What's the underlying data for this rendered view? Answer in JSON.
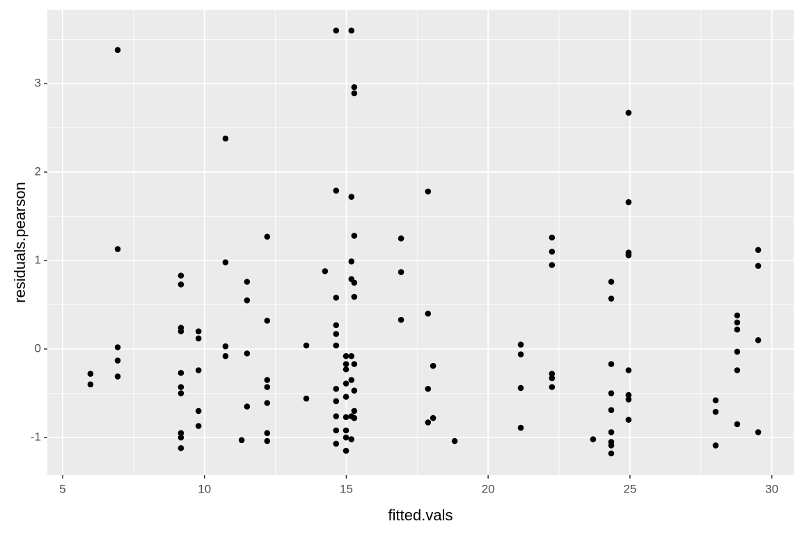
{
  "chart_data": {
    "type": "scatter",
    "x_label": "fitted.vals",
    "y_label": "residuals.pearson",
    "color": "#000000",
    "xlim": [
      4.46,
      30.77
    ],
    "ylim": [
      -1.425,
      3.835
    ],
    "xticks": [
      5,
      10,
      15,
      20,
      25,
      30
    ],
    "yticks": [
      -1,
      0,
      1,
      2,
      3
    ],
    "xminor_ticks": [
      7.5,
      12.5,
      17.5,
      22.5,
      27.5
    ],
    "yminor_ticks": [
      -0.5,
      0.5,
      1.5,
      2.5,
      3.5
    ],
    "grid": true,
    "x": [
      5.98,
      5.98,
      6.94,
      6.94,
      6.94,
      6.94,
      6.94,
      9.17,
      9.17,
      9.17,
      9.17,
      9.17,
      9.17,
      9.17,
      9.17,
      9.17,
      9.17,
      9.79,
      9.79,
      9.79,
      9.79,
      9.79,
      10.74,
      10.74,
      10.74,
      10.74,
      11.31,
      11.5,
      11.5,
      11.5,
      11.5,
      12.21,
      12.21,
      12.21,
      12.21,
      12.21,
      12.21,
      12.21,
      13.59,
      13.59,
      14.25,
      14.64,
      14.64,
      14.64,
      14.64,
      14.64,
      14.64,
      14.64,
      14.64,
      14.64,
      14.64,
      14.64,
      14.99,
      14.99,
      14.99,
      14.99,
      14.99,
      14.99,
      14.99,
      14.99,
      14.99,
      15.18,
      15.18,
      15.18,
      15.18,
      15.18,
      15.18,
      15.18,
      15.18,
      15.28,
      15.28,
      15.28,
      15.28,
      15.28,
      15.28,
      15.28,
      15.28,
      15.28,
      16.93,
      16.93,
      16.93,
      17.88,
      17.88,
      17.88,
      17.88,
      18.06,
      18.06,
      18.82,
      21.15,
      21.15,
      21.15,
      21.15,
      22.25,
      22.25,
      22.25,
      22.25,
      22.25,
      22.25,
      23.7,
      24.34,
      24.34,
      24.34,
      24.34,
      24.34,
      24.34,
      24.34,
      24.34,
      24.34,
      24.95,
      24.95,
      24.95,
      24.95,
      24.95,
      24.95,
      24.95,
      24.95,
      28.02,
      28.02,
      28.02,
      28.78,
      28.78,
      28.78,
      28.78,
      28.78,
      28.78,
      29.52,
      29.52,
      29.52,
      29.52
    ],
    "y": [
      -0.28,
      -0.4,
      3.38,
      1.13,
      0.02,
      -0.13,
      -0.31,
      0.83,
      0.73,
      0.24,
      0.2,
      -0.27,
      -0.43,
      -0.5,
      -0.95,
      -1.0,
      -1.12,
      0.2,
      0.12,
      -0.24,
      -0.7,
      -0.87,
      2.38,
      0.98,
      0.03,
      -0.08,
      -1.03,
      0.76,
      0.55,
      -0.05,
      -0.65,
      1.27,
      0.32,
      -0.35,
      -0.43,
      -0.61,
      -0.95,
      -1.04,
      0.04,
      -0.56,
      0.88,
      3.6,
      1.79,
      0.58,
      0.27,
      0.17,
      0.04,
      -0.45,
      -0.59,
      -0.76,
      -0.92,
      -1.07,
      -0.08,
      -0.17,
      -0.23,
      -0.39,
      -0.54,
      -0.77,
      -0.92,
      -1.0,
      -1.15,
      3.6,
      1.72,
      0.99,
      0.79,
      -0.08,
      -0.35,
      -0.76,
      -1.02,
      2.96,
      2.89,
      1.28,
      0.75,
      0.59,
      -0.17,
      -0.47,
      -0.7,
      -0.78,
      1.25,
      0.87,
      0.33,
      1.78,
      0.4,
      -0.45,
      -0.83,
      -0.19,
      -0.78,
      -1.04,
      0.05,
      -0.06,
      -0.44,
      -0.89,
      1.26,
      1.1,
      0.95,
      -0.28,
      -0.33,
      -0.43,
      -1.02,
      0.76,
      0.57,
      -0.17,
      -0.5,
      -0.69,
      -0.94,
      -1.05,
      -1.09,
      -1.18,
      2.67,
      1.66,
      1.09,
      1.06,
      -0.24,
      -0.52,
      -0.57,
      -0.8,
      -0.58,
      -0.71,
      -1.09,
      0.38,
      0.3,
      0.22,
      -0.03,
      -0.24,
      -0.85,
      1.12,
      0.94,
      0.1,
      -0.94
    ]
  }
}
